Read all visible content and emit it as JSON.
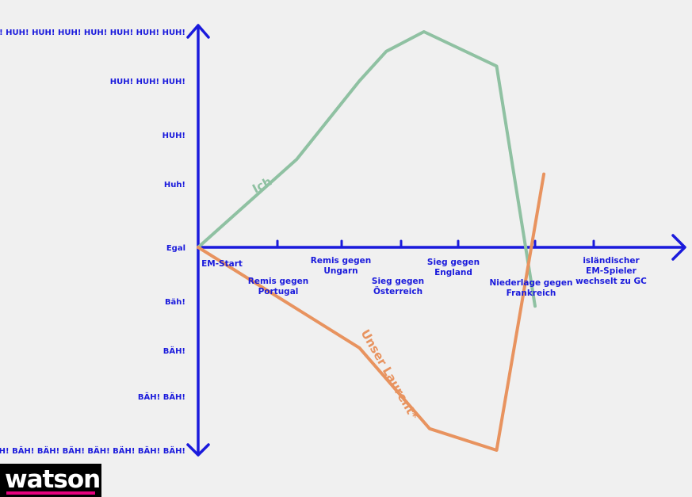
{
  "chart_data": {
    "type": "line",
    "title": "",
    "xlabel": "",
    "ylabel": "",
    "categories": [
      "EM-Start",
      "Remis gegen Portugal",
      "Remis gegen Ungarn",
      "Sieg gegen Österreich",
      "Sieg gegen England",
      "Niederlage gegen Frankreich",
      "isländischer EM-Spieler wechselt zu GC"
    ],
    "y_levels": [
      "BÄH! BÄH! BÄH! BÄH! BÄH! BÄH! BÄH! BÄH!",
      "BÄH! BÄH!",
      "BÄH!",
      "Bäh!",
      "Egal",
      "Huh!",
      "HUH!",
      "HUH! HUH! HUH!",
      "HUH! HUH! HUH! HUH! HUH! HUH! HUH! HUH!"
    ],
    "ylim": [
      -4,
      4
    ],
    "series": [
      {
        "name": "Ich",
        "color": "#8fc1a2",
        "points": [
          [
            0,
            0
          ],
          [
            1.3,
            1.5
          ],
          [
            2.3,
            3.0
          ],
          [
            2.75,
            3.6
          ],
          [
            3.4,
            4.0
          ],
          [
            4.5,
            3.3
          ],
          [
            5.0,
            -1.1
          ]
        ]
      },
      {
        "name": "Unser Laurent*",
        "color": "#e8935f",
        "points": [
          [
            0,
            0
          ],
          [
            2.3,
            -1.95
          ],
          [
            3.5,
            -3.6
          ],
          [
            4.5,
            -4.0
          ],
          [
            5.15,
            1.2
          ]
        ]
      }
    ]
  },
  "branding": {
    "logo": "watson"
  }
}
